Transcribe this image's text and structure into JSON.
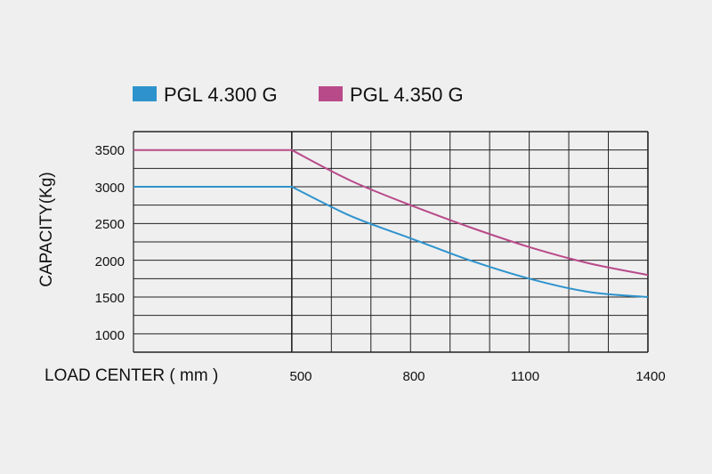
{
  "chart_data": {
    "type": "line",
    "title": "",
    "xlabel": "LOAD CENTER ( mm )",
    "ylabel": "CAPACITY(Kg)",
    "x_tick_labels": [
      "500",
      "800",
      "1100",
      "1400"
    ],
    "y_tick_labels": [
      "3500",
      "3000",
      "2500",
      "2000",
      "1500",
      "1000"
    ],
    "xlim": [
      100,
      1400
    ],
    "ylim": [
      750,
      3750
    ],
    "legend_placement": "top-left",
    "grid": true,
    "series": [
      {
        "name": "PGL 4.300 G",
        "color": "#2e93cd",
        "x": [
          100,
          500,
          650,
          800,
          950,
          1100,
          1250,
          1400
        ],
        "values": [
          3000,
          3000,
          2600,
          2300,
          2000,
          1750,
          1570,
          1500
        ]
      },
      {
        "name": "PGL 4.350 G",
        "color": "#b94a8a",
        "x": [
          100,
          500,
          650,
          800,
          950,
          1100,
          1250,
          1400
        ],
        "values": [
          3500,
          3500,
          3080,
          2750,
          2450,
          2180,
          1960,
          1800
        ]
      }
    ]
  }
}
